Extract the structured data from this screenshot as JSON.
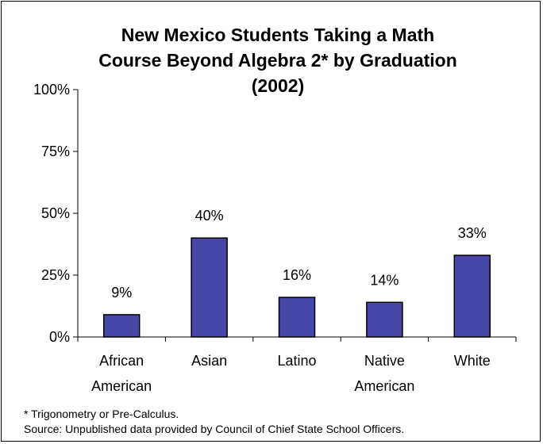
{
  "chart_data": {
    "type": "bar",
    "title_lines": [
      "New Mexico Students Taking a Math",
      "Course Beyond Algebra 2* by Graduation",
      "(2002)"
    ],
    "categories": [
      [
        "African",
        "American"
      ],
      [
        "Asian"
      ],
      [
        "Latino"
      ],
      [
        "Native",
        "American"
      ],
      [
        "White"
      ]
    ],
    "values": [
      9,
      40,
      16,
      14,
      33
    ],
    "data_labels": [
      "9%",
      "40%",
      "16%",
      "14%",
      "33%"
    ],
    "ylim": [
      0,
      100
    ],
    "yticks": [
      0,
      25,
      50,
      75,
      100
    ],
    "ytick_labels": [
      "0%",
      "25%",
      "50%",
      "75%",
      "100%"
    ],
    "grid": false,
    "bar_color": "#4747a8",
    "bar_edge_color": "#000000"
  },
  "footnotes": [
    "* Trigonometry or Pre-Calculus.",
    "Source:  Unpublished data provided by Council of Chief State School Officers."
  ]
}
